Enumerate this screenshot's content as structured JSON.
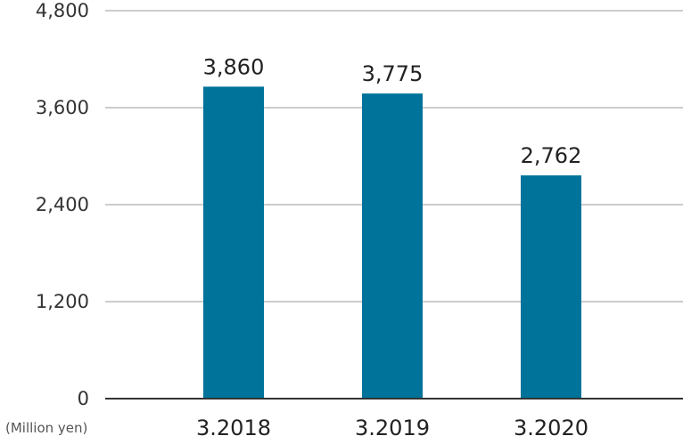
{
  "chart_data": {
    "type": "bar",
    "categories": [
      "3.2018",
      "3.2019",
      "3.2020"
    ],
    "values": [
      3860,
      3775,
      2762
    ],
    "data_labels": [
      "3,860",
      "3,775",
      "2,762"
    ],
    "ylim": [
      0,
      4800
    ],
    "yticks": [
      0,
      1200,
      2400,
      3600,
      4800
    ],
    "ytick_labels": [
      "0",
      "1,200",
      "2,400",
      "3,600",
      "4,800"
    ],
    "unit_label": "(Million yen)",
    "grid": true,
    "bar_color": "#00739A",
    "grid_color": "#BBBBBB",
    "axis_color": "#333333"
  }
}
